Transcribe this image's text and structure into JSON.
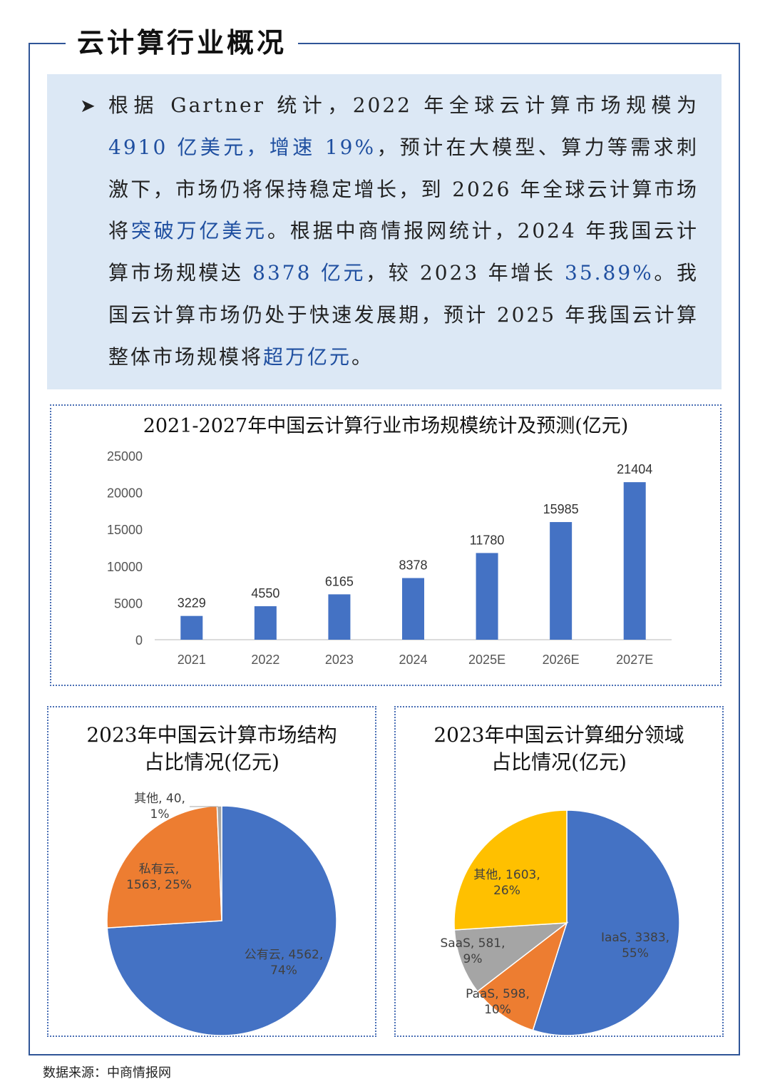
{
  "heading": "云计算行业概况",
  "intro": {
    "segments": [
      {
        "text": "根据 Gartner 统计，2022 年全球云计算市场规模为 ",
        "highlight": false
      },
      {
        "text": "4910 亿美元，增速 19%",
        "highlight": true
      },
      {
        "text": "，预计在大模型、算力等需求刺激下，市场仍将保持稳定增长，到 2026 年全球云计算市场将",
        "highlight": false
      },
      {
        "text": "突破万亿美元",
        "highlight": true
      },
      {
        "text": "。根据中商情报网统计，2024 年我国云计算市场规模达 ",
        "highlight": false
      },
      {
        "text": "8378 亿元",
        "highlight": true
      },
      {
        "text": "，较 2023 年增长 ",
        "highlight": false
      },
      {
        "text": "35.89%",
        "highlight": true
      },
      {
        "text": "。我国云计算市场仍处于快速发展期，预计 2025 年我国云计算整体市场规模将",
        "highlight": false
      },
      {
        "text": "超万亿元",
        "highlight": true
      },
      {
        "text": "。",
        "highlight": false
      }
    ]
  },
  "colors": {
    "frame": "#2f5597",
    "highlight": "#1f4fa0",
    "bar": "#4472c4",
    "pie_blue": "#4472c4",
    "pie_orange": "#ed7d31",
    "pie_gray": "#a5a5a5",
    "pie_yellow": "#ffc000",
    "intro_bg": "#dce8f5"
  },
  "chart_data": [
    {
      "type": "bar",
      "title": "2021-2027年中国云计算行业市场规模统计及预测(亿元)",
      "categories": [
        "2021",
        "2022",
        "2023",
        "2024",
        "2025E",
        "2026E",
        "2027E"
      ],
      "values": [
        3229,
        4550,
        6165,
        8378,
        11780,
        15985,
        21404
      ],
      "ylim": [
        0,
        25000
      ],
      "yticks": [
        0,
        5000,
        10000,
        15000,
        20000,
        25000
      ],
      "data_labels": true,
      "grid": false
    },
    {
      "type": "pie",
      "title_lines": [
        "2023年中国云计算市场结构",
        "占比情况(亿元)"
      ],
      "slices": [
        {
          "label": "公有云",
          "value": 4562,
          "percent": "74%",
          "color": "#4472c4"
        },
        {
          "label": "私有云",
          "value": 1563,
          "percent": "25%",
          "color": "#ed7d31"
        },
        {
          "label": "其他",
          "value": 40,
          "percent": "1%",
          "color": "#a5a5a5"
        }
      ]
    },
    {
      "type": "pie",
      "title_lines": [
        "2023年中国云计算细分领域",
        "占比情况(亿元)"
      ],
      "slices": [
        {
          "label": "IaaS",
          "value": 3383,
          "percent": "55%",
          "color": "#4472c4"
        },
        {
          "label": "PaaS",
          "value": 598,
          "percent": "10%",
          "color": "#ed7d31"
        },
        {
          "label": "SaaS",
          "value": 581,
          "percent": "9%",
          "color": "#a5a5a5"
        },
        {
          "label": "其他",
          "value": 1603,
          "percent": "26%",
          "color": "#ffc000"
        }
      ]
    }
  ],
  "source": "数据来源：中商情报网"
}
